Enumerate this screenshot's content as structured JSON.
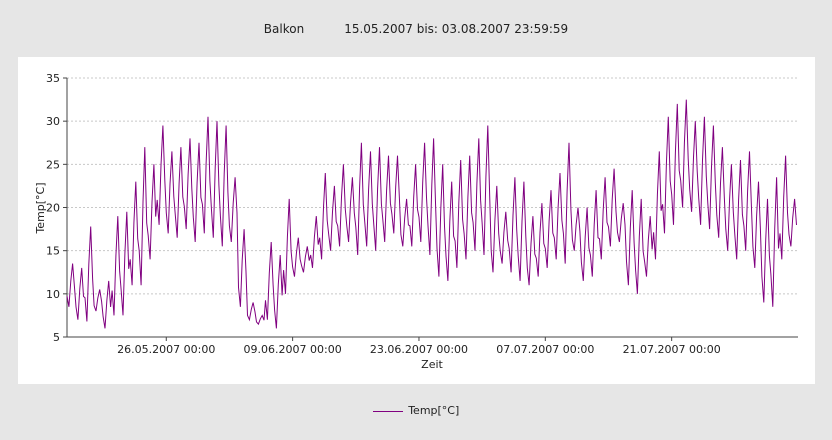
{
  "title": {
    "location": "Balkon",
    "range": "15.05.2007 bis: 03.08.2007 23:59:59"
  },
  "chart_data": {
    "type": "line",
    "xlabel": "Zeit",
    "ylabel": "Temp[°C]",
    "ylim": [
      5,
      35
    ],
    "yticks": [
      5,
      10,
      15,
      20,
      25,
      30,
      35
    ],
    "xlim": [
      "2007-05-15 00:00",
      "2007-08-03 23:59"
    ],
    "xticks": [
      {
        "date": "2007-05-26 00:00",
        "label": "26.05.2007 00:00"
      },
      {
        "date": "2007-06-09 00:00",
        "label": "09.06.2007 00:00"
      },
      {
        "date": "2007-06-23 00:00",
        "label": "23.06.2007 00:00"
      },
      {
        "date": "2007-07-07 00:00",
        "label": "07.07.2007 00:00"
      },
      {
        "date": "2007-07-21 00:00",
        "label": "21.07.2007 00:00"
      }
    ],
    "grid": true,
    "legend": "bottom-center",
    "series": [
      {
        "name": "Temp[°C]",
        "color": "#800080",
        "daily_minmax": [
          [
            "2007-05-15",
            8.5,
            13.5
          ],
          [
            "2007-05-16",
            7.0,
            13.0
          ],
          [
            "2007-05-17",
            6.8,
            17.8
          ],
          [
            "2007-05-18",
            8.0,
            10.5
          ],
          [
            "2007-05-19",
            6.0,
            11.5
          ],
          [
            "2007-05-20",
            7.5,
            19.0
          ],
          [
            "2007-05-21",
            7.5,
            19.5
          ],
          [
            "2007-05-22",
            11.0,
            23.0
          ],
          [
            "2007-05-23",
            11.0,
            27.0
          ],
          [
            "2007-05-24",
            14.0,
            25.0
          ],
          [
            "2007-05-25",
            18.0,
            29.5
          ],
          [
            "2007-05-26",
            17.0,
            26.5
          ],
          [
            "2007-05-27",
            16.5,
            27.0
          ],
          [
            "2007-05-28",
            17.5,
            28.0
          ],
          [
            "2007-05-29",
            16.0,
            27.5
          ],
          [
            "2007-05-30",
            17.0,
            30.5
          ],
          [
            "2007-05-31",
            16.5,
            30.0
          ],
          [
            "2007-06-01",
            15.5,
            29.5
          ],
          [
            "2007-06-02",
            16.0,
            23.5
          ],
          [
            "2007-06-03",
            8.5,
            17.5
          ],
          [
            "2007-06-04",
            7.0,
            9.0
          ],
          [
            "2007-06-05",
            6.5,
            7.5
          ],
          [
            "2007-06-06",
            7.0,
            16.0
          ],
          [
            "2007-06-07",
            6.0,
            14.5
          ],
          [
            "2007-06-08",
            10.0,
            21.0
          ],
          [
            "2007-06-09",
            12.0,
            16.5
          ],
          [
            "2007-06-10",
            12.5,
            15.5
          ],
          [
            "2007-06-11",
            13.0,
            19.0
          ],
          [
            "2007-06-12",
            14.0,
            24.0
          ],
          [
            "2007-06-13",
            15.0,
            22.5
          ],
          [
            "2007-06-14",
            15.5,
            25.0
          ],
          [
            "2007-06-15",
            16.0,
            23.5
          ],
          [
            "2007-06-16",
            14.5,
            27.5
          ],
          [
            "2007-06-17",
            15.5,
            26.5
          ],
          [
            "2007-06-18",
            15.0,
            27.0
          ],
          [
            "2007-06-19",
            16.0,
            26.0
          ],
          [
            "2007-06-20",
            17.0,
            26.0
          ],
          [
            "2007-06-21",
            15.5,
            21.0
          ],
          [
            "2007-06-22",
            15.5,
            25.0
          ],
          [
            "2007-06-23",
            16.0,
            27.5
          ],
          [
            "2007-06-24",
            14.5,
            28.0
          ],
          [
            "2007-06-25",
            12.0,
            25.0
          ],
          [
            "2007-06-26",
            11.5,
            23.0
          ],
          [
            "2007-06-27",
            13.0,
            25.5
          ],
          [
            "2007-06-28",
            14.0,
            26.0
          ],
          [
            "2007-06-29",
            15.0,
            28.0
          ],
          [
            "2007-06-30",
            14.5,
            29.5
          ],
          [
            "2007-07-01",
            12.5,
            22.5
          ],
          [
            "2007-07-02",
            13.5,
            19.5
          ],
          [
            "2007-07-03",
            12.5,
            23.5
          ],
          [
            "2007-07-04",
            11.5,
            23.0
          ],
          [
            "2007-07-05",
            11.0,
            19.0
          ],
          [
            "2007-07-06",
            12.0,
            20.5
          ],
          [
            "2007-07-07",
            13.0,
            22.0
          ],
          [
            "2007-07-08",
            14.0,
            24.0
          ],
          [
            "2007-07-09",
            13.5,
            27.5
          ],
          [
            "2007-07-10",
            15.0,
            20.0
          ],
          [
            "2007-07-11",
            11.5,
            20.0
          ],
          [
            "2007-07-12",
            12.0,
            22.0
          ],
          [
            "2007-07-13",
            14.0,
            23.5
          ],
          [
            "2007-07-14",
            15.5,
            24.5
          ],
          [
            "2007-07-15",
            16.0,
            20.5
          ],
          [
            "2007-07-16",
            11.0,
            22.0
          ],
          [
            "2007-07-17",
            10.0,
            21.0
          ],
          [
            "2007-07-18",
            12.0,
            19.0
          ],
          [
            "2007-07-19",
            14.0,
            26.5
          ],
          [
            "2007-07-20",
            17.0,
            30.5
          ],
          [
            "2007-07-21",
            18.0,
            32.0
          ],
          [
            "2007-07-22",
            20.0,
            32.5
          ],
          [
            "2007-07-23",
            19.5,
            30.0
          ],
          [
            "2007-07-24",
            18.0,
            30.5
          ],
          [
            "2007-07-25",
            17.5,
            29.5
          ],
          [
            "2007-07-26",
            16.5,
            27.0
          ],
          [
            "2007-07-27",
            15.0,
            25.0
          ],
          [
            "2007-07-28",
            14.0,
            25.5
          ],
          [
            "2007-07-29",
            15.0,
            26.5
          ],
          [
            "2007-07-30",
            13.0,
            23.0
          ],
          [
            "2007-07-31",
            9.0,
            21.0
          ],
          [
            "2007-08-01",
            8.5,
            23.5
          ],
          [
            "2007-08-02",
            14.0,
            26.0
          ],
          [
            "2007-08-03",
            15.5,
            21.0
          ]
        ]
      }
    ]
  }
}
